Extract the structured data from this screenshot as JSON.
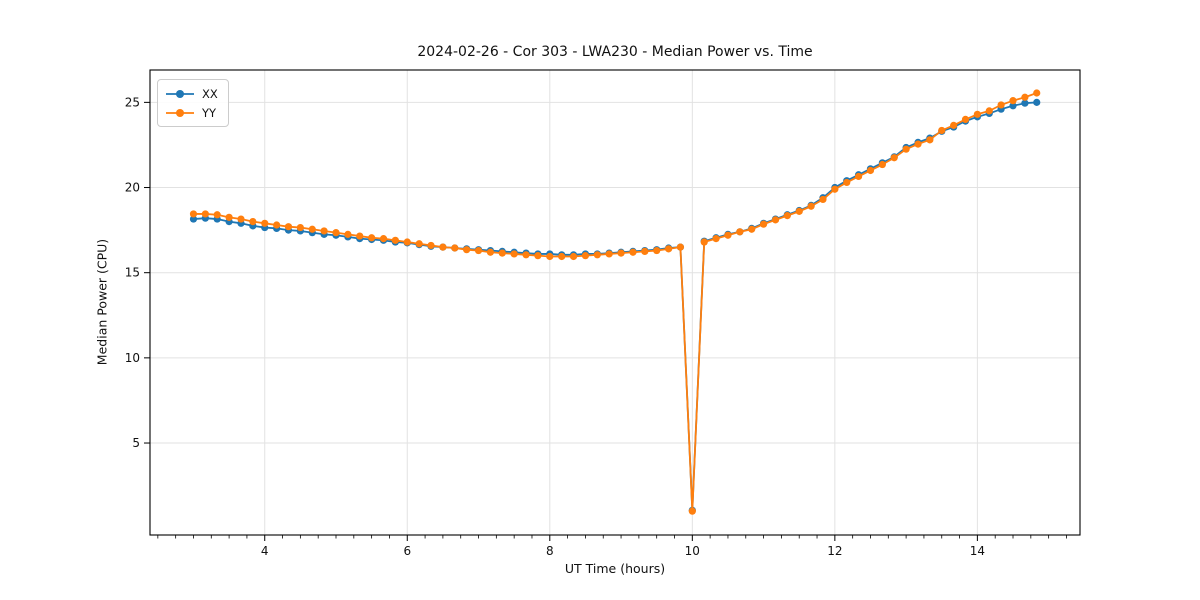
{
  "figure": {
    "title": "2024-02-26 - Cor 303 - LWA230 - Median Power vs. Time",
    "xlabel": "UT Time (hours)",
    "ylabel": "Median Power (CPU)"
  },
  "chart_data": {
    "type": "line",
    "title": "2024-02-26 - Cor 303 - LWA230 - Median Power vs. Time",
    "xlabel": "UT Time (hours)",
    "ylabel": "Median Power (CPU)",
    "xlim": [
      2.39,
      15.44
    ],
    "ylim": [
      -0.4,
      26.9
    ],
    "x_ticks": [
      4,
      6,
      8,
      10,
      12,
      14
    ],
    "x_minor_tick_step": 0.25,
    "y_ticks": [
      5,
      10,
      15,
      20,
      25
    ],
    "grid": true,
    "legend_position": "upper left",
    "background": "#ffffff",
    "grid_color": "#e2e2e2",
    "x": [
      3.0,
      3.167,
      3.333,
      3.5,
      3.667,
      3.833,
      4.0,
      4.167,
      4.333,
      4.5,
      4.667,
      4.833,
      5.0,
      5.167,
      5.333,
      5.5,
      5.667,
      5.833,
      6.0,
      6.167,
      6.333,
      6.5,
      6.667,
      6.833,
      7.0,
      7.167,
      7.333,
      7.5,
      7.667,
      7.833,
      8.0,
      8.167,
      8.333,
      8.5,
      8.667,
      8.833,
      9.0,
      9.167,
      9.333,
      9.5,
      9.667,
      9.833,
      10.0,
      10.167,
      10.333,
      10.5,
      10.667,
      10.833,
      11.0,
      11.167,
      11.333,
      11.5,
      11.667,
      11.833,
      12.0,
      12.167,
      12.333,
      12.5,
      12.667,
      12.833,
      13.0,
      13.167,
      13.333,
      13.5,
      13.667,
      13.833,
      14.0,
      14.167,
      14.333,
      14.5,
      14.667,
      14.833
    ],
    "series": [
      {
        "name": "XX",
        "color": "#1f77b4",
        "values": [
          18.15,
          18.2,
          18.15,
          18.0,
          17.9,
          17.75,
          17.65,
          17.6,
          17.5,
          17.45,
          17.35,
          17.25,
          17.2,
          17.1,
          17.0,
          16.95,
          16.9,
          16.8,
          16.75,
          16.65,
          16.55,
          16.5,
          16.45,
          16.4,
          16.35,
          16.3,
          16.25,
          16.2,
          16.15,
          16.1,
          16.1,
          16.05,
          16.05,
          16.1,
          16.1,
          16.15,
          16.2,
          16.25,
          16.3,
          16.35,
          16.45,
          16.5,
          1.05,
          16.85,
          17.05,
          17.25,
          17.4,
          17.6,
          17.9,
          18.15,
          18.4,
          18.65,
          18.95,
          19.4,
          20.0,
          20.4,
          20.75,
          21.1,
          21.45,
          21.8,
          22.35,
          22.65,
          22.9,
          23.3,
          23.55,
          23.9,
          24.15,
          24.35,
          24.6,
          24.8,
          24.95,
          25.0
        ]
      },
      {
        "name": "YY",
        "color": "#ff7f0e",
        "values": [
          18.45,
          18.45,
          18.4,
          18.25,
          18.15,
          18.0,
          17.9,
          17.8,
          17.7,
          17.65,
          17.55,
          17.45,
          17.35,
          17.25,
          17.15,
          17.05,
          17.0,
          16.9,
          16.8,
          16.7,
          16.6,
          16.5,
          16.45,
          16.35,
          16.3,
          16.2,
          16.15,
          16.1,
          16.05,
          16.0,
          15.95,
          15.95,
          15.95,
          16.0,
          16.05,
          16.1,
          16.15,
          16.2,
          16.25,
          16.3,
          16.4,
          16.5,
          1.0,
          16.8,
          17.0,
          17.2,
          17.4,
          17.55,
          17.85,
          18.1,
          18.35,
          18.6,
          18.9,
          19.3,
          19.9,
          20.3,
          20.65,
          21.0,
          21.35,
          21.75,
          22.25,
          22.55,
          22.8,
          23.35,
          23.65,
          24.0,
          24.3,
          24.5,
          24.85,
          25.1,
          25.3,
          25.55
        ]
      }
    ]
  }
}
